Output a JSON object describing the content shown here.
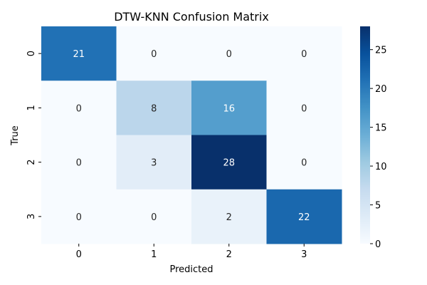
{
  "chart_data": {
    "type": "heatmap",
    "title": "DTW-KNN Confusion Matrix",
    "xlabel": "Predicted",
    "ylabel": "True",
    "x_categories": [
      "0",
      "1",
      "2",
      "3"
    ],
    "y_categories": [
      "0",
      "1",
      "2",
      "3"
    ],
    "values": [
      [
        21,
        0,
        0,
        0
      ],
      [
        0,
        8,
        16,
        0
      ],
      [
        0,
        3,
        28,
        0
      ],
      [
        0,
        0,
        2,
        22
      ]
    ],
    "colorbar": {
      "range": [
        0,
        28
      ],
      "ticks": [
        "0",
        "5",
        "10",
        "15",
        "20",
        "25"
      ]
    },
    "colormap": "Blues",
    "annotation_light_color": "#ffffff",
    "annotation_dark_color": "#262626"
  }
}
